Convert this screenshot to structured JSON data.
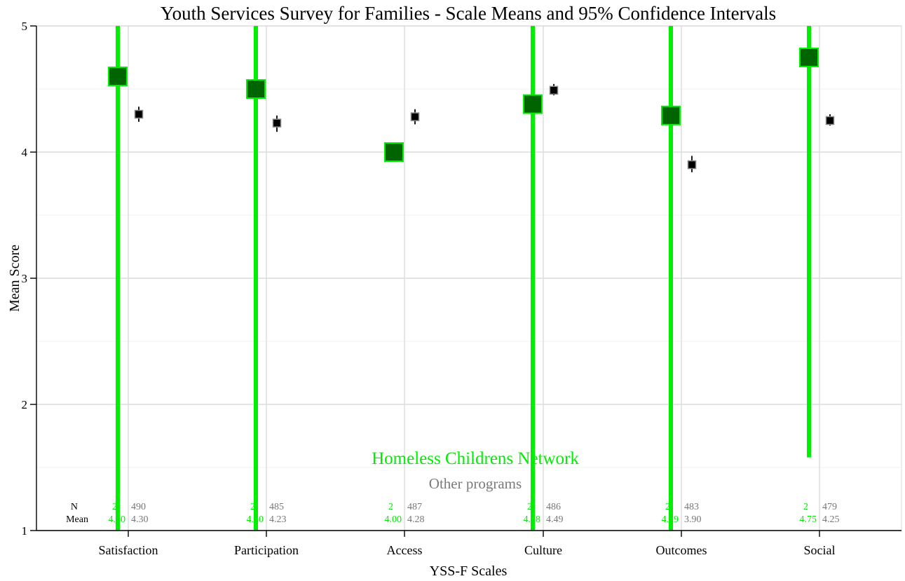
{
  "chart_data": {
    "type": "scatter",
    "title": "Youth Services Survey for Families - Scale Means and 95% Confidence Intervals",
    "xlabel": "YSS-F Scales",
    "ylabel": "Mean Score",
    "ylim": [
      1,
      5
    ],
    "yticks": [
      "1",
      "2",
      "3",
      "4",
      "5"
    ],
    "grid": true,
    "categories": [
      "Satisfaction",
      "Participation",
      "Access",
      "Culture",
      "Outcomes",
      "Social"
    ],
    "series": [
      {
        "name": "Homeless Childrens Network",
        "color": "#00ee00",
        "fill": "#006400",
        "values": [
          4.6,
          4.5,
          4.0,
          4.38,
          4.29,
          4.75
        ],
        "ci_low": [
          1.0,
          1.0,
          null,
          1.0,
          1.0,
          1.58
        ],
        "ci_high": [
          5.0,
          5.0,
          null,
          5.0,
          5.0,
          5.0
        ],
        "n": [
          "2",
          "2",
          "2",
          "2",
          "2",
          "2"
        ],
        "mean_labels": [
          "4.60",
          "4.50",
          "4.00",
          "4.38",
          "4.29",
          "4.75"
        ]
      },
      {
        "name": "Other programs",
        "color": "#777777",
        "fill": "#000000",
        "values": [
          4.3,
          4.23,
          4.28,
          4.49,
          3.9,
          4.25
        ],
        "ci_low": [
          4.24,
          4.16,
          4.22,
          4.45,
          3.84,
          4.21
        ],
        "ci_high": [
          4.36,
          4.29,
          4.34,
          4.54,
          3.97,
          4.3
        ],
        "n": [
          "490",
          "485",
          "487",
          "486",
          "483",
          "479"
        ],
        "mean_labels": [
          "4.30",
          "4.23",
          "4.28",
          "4.49",
          "3.90",
          "4.25"
        ]
      }
    ],
    "table_row_labels": [
      "N",
      "Mean"
    ],
    "legend": "bottom-center"
  }
}
